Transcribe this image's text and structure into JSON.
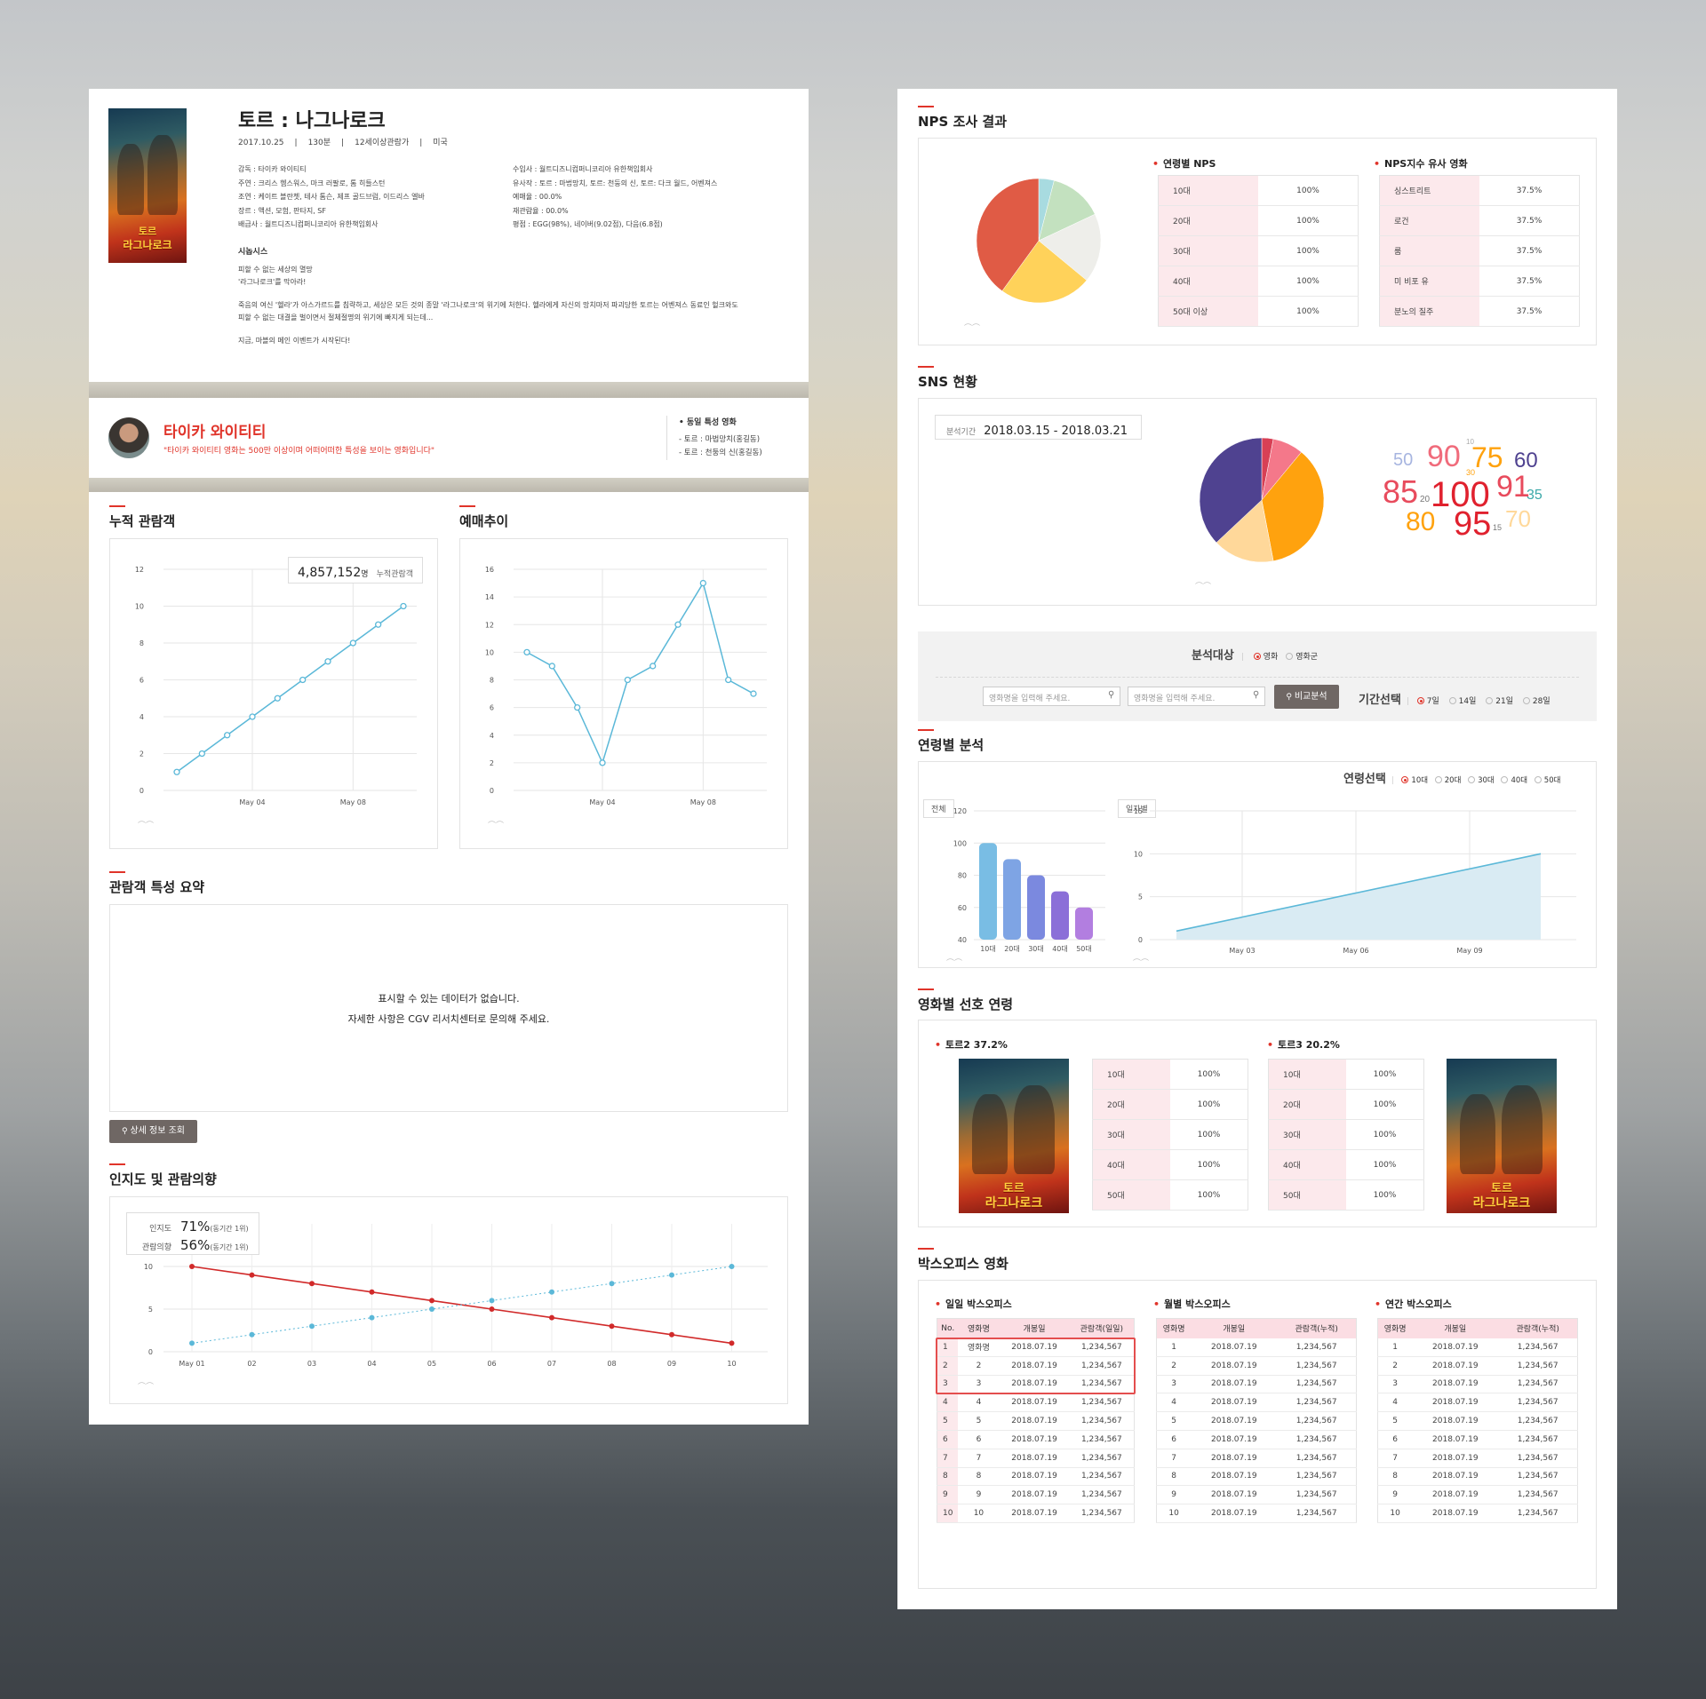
{
  "movie": {
    "title": "토르 : 나그나로크",
    "meta": [
      "2017.10.25",
      "130분",
      "12세이상관람가",
      "미국"
    ],
    "info_left": [
      "감독 : 타이카 와이티티",
      "주연 : 크리스 헴스워스, 마크 러팔로, 톰 히들스턴",
      "조연 : 케이트 블란쳇, 테사 톰슨, 제프 골드브럼, 이드리스 엘바",
      "장르 : 액션, 모험, 판타지, SF",
      "배급사 : 월트디즈니컴퍼니코리아 유한책임회사"
    ],
    "info_right": [
      "수입사 : 월트디즈니컴퍼니코리아 유한책임회사",
      "유사작 : 토르 : 마법망치, 토르: 천둥의 신, 토르: 다크 월드, 어벤져스",
      "예매율 : 00.0%",
      "재관람율 : 00.0%",
      "평점 : EGG(98%), 네이버(9.02점), 다음(6.8점)"
    ],
    "synopsis_label": "시놉시스",
    "synopsis": [
      "피할 수 없는 세상의 멸망",
      "'라그나로크'를 막아라!",
      "죽음의 여신 '헬라'가 아스가르드를 침략하고, 세상은 모든 것의 종말 '라그나로크'의 위기에 처한다. 헬라에게 자신의 망치마저 파괴당한 토르는 어벤져스 동료인 헐크와도",
      "피할 수 없는 대결을 벌이면서 절체절명의 위기에 빠지게 되는데...",
      "지금, 마블의 메인 이벤트가 시작된다!"
    ],
    "poster_line1": "토르",
    "poster_line2": "라그나로크"
  },
  "director": {
    "name": "타이카 와이티티",
    "desc": "\"타이카 와이티티 영화는 500만 이상이며 어떠어떠한 특성을 보이는 영화입니다\"",
    "similar_title": "• 동일 특성 영화",
    "similar": [
      "- 토르 : 마법망치(홍길동)",
      "- 토르 : 천둥의 신(홍길동)"
    ]
  },
  "cumulative": {
    "title": "누적 관람객",
    "badge_value": "4,857,152",
    "badge_unit": "명",
    "badge_label": "누적관람객"
  },
  "reservation": {
    "title": "예매추이"
  },
  "summary": {
    "title": "관람객 특성 요약",
    "empty1": "표시할 수 있는 데이터가 없습니다.",
    "empty2": "자세한 사항은 CGV 리서치센터로 문의해 주세요.",
    "detail_btn": "상세 정보 조회"
  },
  "awareness": {
    "title": "인지도 및 관람의향",
    "l1": "인지도",
    "v1": "71%",
    "s1": "(동기간 1위)",
    "l2": "관람의향",
    "v2": "56%",
    "s2": "(동기간 1위)"
  },
  "nps": {
    "title": "NPS 조사 결과",
    "age_title": "연령별 NPS",
    "age_rows": [
      [
        "10대",
        "100%"
      ],
      [
        "20대",
        "100%"
      ],
      [
        "30대",
        "100%"
      ],
      [
        "40대",
        "100%"
      ],
      [
        "50대 이상",
        "100%"
      ]
    ],
    "sim_title": "NPS지수 유사 영화",
    "sim_rows": [
      [
        "싱스트리트",
        "37.5%"
      ],
      [
        "로건",
        "37.5%"
      ],
      [
        "룸",
        "37.5%"
      ],
      [
        "미 비포 유",
        "37.5%"
      ],
      [
        "분노의 질주",
        "37.5%"
      ]
    ]
  },
  "sns": {
    "title": "SNS 현황",
    "period_label": "분석기간",
    "period": "2018.03.15 - 2018.03.21"
  },
  "filter": {
    "target_label": "분석대상",
    "target_opts": [
      "영화",
      "영화군"
    ],
    "placeholder": "영화명을 입력해 주세요.",
    "compare_btn": "비교분석",
    "period_label": "기간선택",
    "period_opts": [
      "7일",
      "14일",
      "21일",
      "28일"
    ]
  },
  "age_analysis": {
    "title": "연령별 분석",
    "select_label": "연령선택",
    "opts": [
      "10대",
      "20대",
      "30대",
      "40대",
      "50대"
    ],
    "tag_total": "전체",
    "tag_daily": "일자별"
  },
  "pref": {
    "title": "영화별 선호 연령",
    "a_title": "토르2 37.2%",
    "b_title": "토르3 20.2%",
    "rows": [
      [
        "10대",
        "100%"
      ],
      [
        "20대",
        "100%"
      ],
      [
        "30대",
        "100%"
      ],
      [
        "40대",
        "100%"
      ],
      [
        "50대",
        "100%"
      ]
    ]
  },
  "boxoffice": {
    "title": "박스오피스 영화",
    "daily": "일일 박스오피스",
    "monthly": "월별 박스오피스",
    "yearly": "연간 박스오피스",
    "daily_head": [
      "No.",
      "영화명",
      "개봉일",
      "관람객(일일)"
    ],
    "cum_head": [
      "영화명",
      "개봉일",
      "관람객(누적)"
    ],
    "daily_names": [
      "영화명",
      "2",
      "3",
      "4",
      "5",
      "6",
      "7",
      "8",
      "9",
      "10"
    ],
    "date": "2018.07.19",
    "count": "1,234,567"
  },
  "chart_data": [
    {
      "type": "line",
      "title": "누적 관람객",
      "x_ticks": [
        "May 04",
        "May 08"
      ],
      "ylim": [
        0,
        12
      ],
      "y_ticks": [
        0,
        2,
        4,
        6,
        8,
        10,
        12
      ],
      "values": [
        1,
        2,
        3,
        4,
        5,
        6,
        7,
        8,
        9,
        10
      ]
    },
    {
      "type": "line",
      "title": "예매추이",
      "x_ticks": [
        "May 04",
        "May 08"
      ],
      "ylim": [
        0,
        16
      ],
      "y_ticks": [
        0,
        2,
        4,
        6,
        8,
        10,
        12,
        14,
        16
      ],
      "values": [
        10,
        9,
        6,
        2,
        8,
        9,
        12,
        15,
        8,
        7
      ]
    },
    {
      "type": "line",
      "title": "인지도 및 관람의향",
      "categories": [
        "May 01",
        "02",
        "03",
        "04",
        "05",
        "06",
        "07",
        "08",
        "09",
        "10"
      ],
      "ylim": [
        0,
        10
      ],
      "y_ticks": [
        0,
        5,
        10
      ],
      "series": [
        {
          "values": [
            10,
            9,
            8,
            7,
            6,
            5,
            4,
            3,
            2,
            1
          ],
          "color": "#d12a2a"
        },
        {
          "values": [
            1,
            2,
            3,
            4,
            5,
            6,
            7,
            8,
            9,
            10
          ],
          "color": "#5bb8d8"
        }
      ]
    },
    {
      "type": "pie",
      "title": "NPS 조사 결과",
      "values": [
        4,
        14,
        18,
        24,
        40
      ],
      "colors": [
        "#a8dbe0",
        "#c3e1bf",
        "#eeeeea",
        "#ffd25a",
        "#e05b45"
      ]
    },
    {
      "type": "pie",
      "title": "SNS 현황",
      "values": [
        3,
        8,
        36,
        16,
        37
      ],
      "colors": [
        "#d84055",
        "#f4788a",
        "#ffa20e",
        "#ffd89a",
        "#4f4290"
      ]
    },
    {
      "type": "word_cloud",
      "values": [
        50,
        90,
        10,
        75,
        60,
        30,
        85,
        20,
        100,
        91,
        35,
        80,
        95,
        15,
        70
      ]
    },
    {
      "type": "bar",
      "categories": [
        "10대",
        "20대",
        "30대",
        "40대",
        "50대"
      ],
      "values": [
        100,
        90,
        80,
        70,
        60
      ],
      "ylim": [
        40,
        120
      ],
      "y_ticks": [
        40,
        60,
        80,
        100,
        120
      ]
    },
    {
      "type": "area",
      "x_ticks": [
        "May 03",
        "May 06",
        "May 09"
      ],
      "ylim": [
        0,
        15
      ],
      "y_ticks": [
        0,
        5,
        10,
        15
      ],
      "values": [
        1,
        10
      ]
    }
  ]
}
